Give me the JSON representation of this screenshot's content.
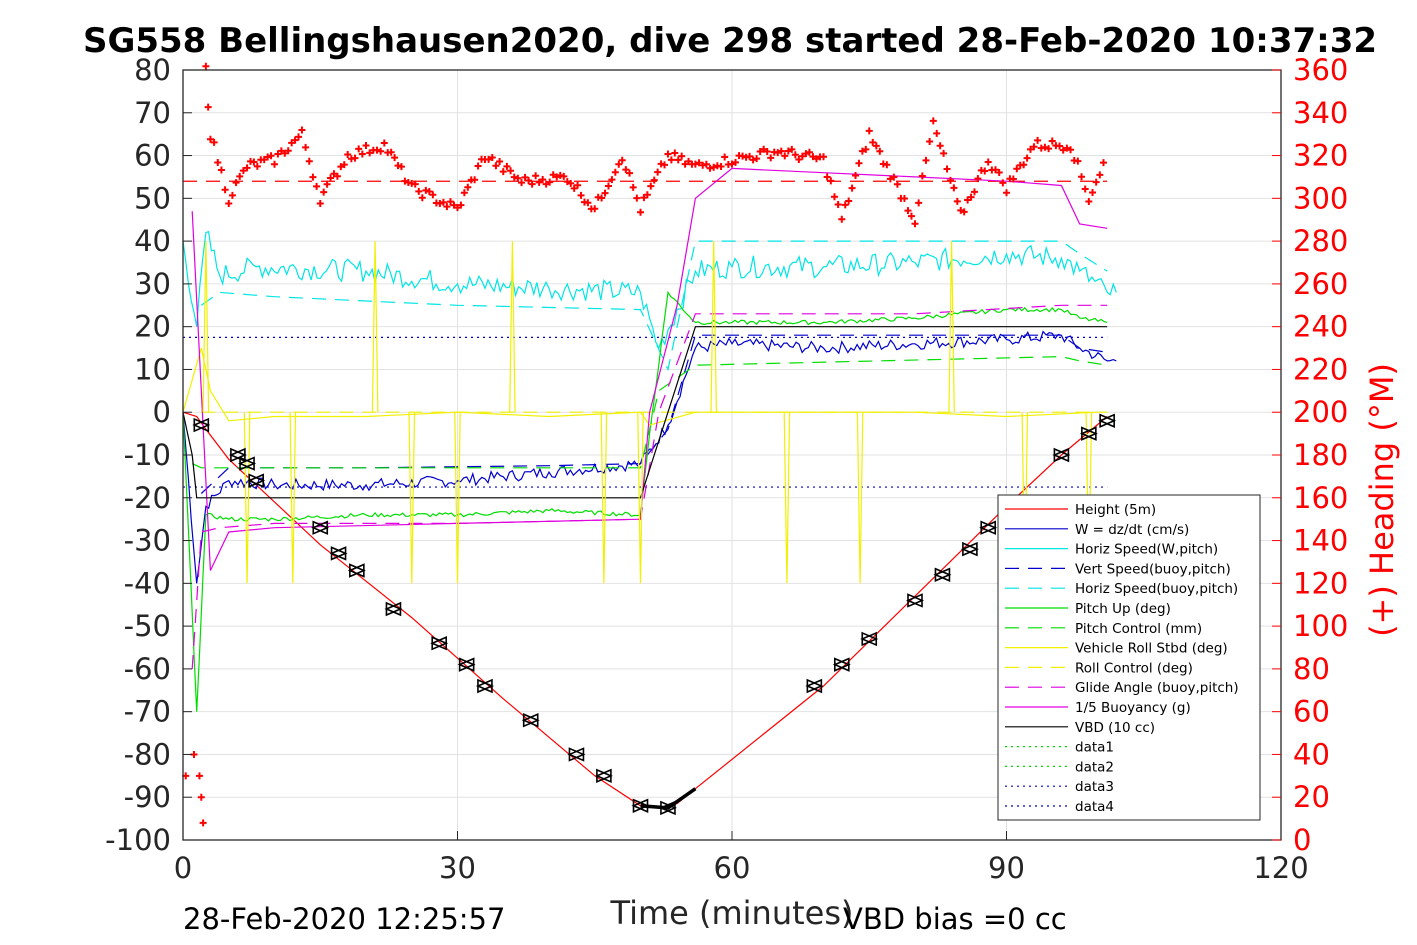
{
  "chart_data": {
    "type": "line",
    "title": "SG558 Bellingshausen2020, dive 298 started 28-Feb-2020 10:37:32",
    "xlabel": "Time (minutes)",
    "ylabel_right": "(+) Heading (°M)",
    "xlim": [
      0,
      120
    ],
    "ylim_left": [
      -100,
      80
    ],
    "ylim_right": [
      0,
      360
    ],
    "xticks": [
      "0",
      "30",
      "60",
      "90",
      "120"
    ],
    "yticks_left": [
      "80",
      "70",
      "60",
      "50",
      "40",
      "30",
      "20",
      "10",
      "0",
      "-10",
      "-20",
      "-30",
      "-40",
      "-50",
      "-60",
      "-70",
      "-80",
      "-90",
      "-100"
    ],
    "yticks_right": [
      "360",
      "340",
      "320",
      "300",
      "280",
      "260",
      "240",
      "220",
      "200",
      "180",
      "160",
      "140",
      "120",
      "100",
      "80",
      "60",
      "40",
      "20",
      "0"
    ],
    "grid": true,
    "legend_position": "lower-right",
    "footer_left": "28-Feb-2020 12:25:57",
    "footer_right": "VBD bias =0 cc",
    "colors": {
      "red": "#ff0000",
      "blue": "#0000cc",
      "cyan": "#00e5e5",
      "green": "#00dd00",
      "yellow": "#f0f000",
      "magenta": "#e000e0",
      "black": "#000000"
    },
    "series": [
      {
        "name": "Height (5m)",
        "color": "#ff0000",
        "dash": "solid",
        "x": [
          0,
          1.5,
          2.5,
          5,
          8,
          15,
          25,
          35,
          45,
          50,
          52,
          54,
          56,
          70,
          80,
          90,
          96,
          101
        ],
        "y": [
          0,
          -1,
          -4,
          -11,
          -17,
          -31,
          -48,
          -67,
          -85,
          -92,
          -92.5,
          -91.5,
          -88,
          -64,
          -43,
          -22,
          -10,
          -1
        ]
      },
      {
        "name": "W = dz/dt (cm/s)",
        "color": "#0000cc",
        "dash": "solid",
        "x": [
          0,
          1.5,
          2.5,
          5,
          10,
          20,
          30,
          40,
          50,
          53,
          56,
          60,
          70,
          80,
          90,
          96,
          98,
          101,
          102
        ],
        "y": [
          0,
          -40,
          -22,
          -16,
          -17,
          -17,
          -16,
          -14,
          -12,
          -3,
          15,
          16,
          15,
          16,
          17,
          18,
          15,
          12,
          12
        ]
      },
      {
        "name": "Horiz Speed(W,pitch)",
        "color": "#00e5e5",
        "dash": "solid",
        "x": [
          0,
          1.5,
          2.5,
          4,
          8,
          20,
          30,
          40,
          50,
          52,
          56,
          60,
          70,
          80,
          90,
          96,
          98,
          101,
          102
        ],
        "y": [
          40,
          20,
          42,
          32,
          34,
          33,
          30,
          29,
          28,
          15,
          33,
          34,
          34,
          35,
          37,
          36,
          33,
          28,
          28
        ]
      },
      {
        "name": "Vert Speed(buoy,pitch)",
        "color": "#0000cc",
        "dash": "long",
        "x": [
          2,
          5,
          20,
          40,
          50,
          53,
          56,
          80,
          96,
          98,
          101
        ],
        "y": [
          -19,
          -13,
          -13,
          -12.5,
          -12,
          -4,
          18,
          18,
          18,
          15,
          14
        ]
      },
      {
        "name": "Horiz Speed(buoy,pitch)",
        "color": "#00e5e5",
        "dash": "long",
        "x": [
          2,
          4,
          10,
          30,
          50,
          53,
          56,
          80,
          96,
          98,
          101
        ],
        "y": [
          25,
          28,
          27,
          25,
          24,
          10,
          40,
          40,
          40,
          37,
          33
        ]
      },
      {
        "name": "Pitch Up (deg)",
        "color": "#00dd00",
        "dash": "solid",
        "x": [
          0,
          1.5,
          2.5,
          5,
          10,
          20,
          30,
          40,
          50,
          51,
          53,
          56,
          60,
          70,
          80,
          90,
          96,
          98,
          101
        ],
        "y": [
          0,
          -70,
          -24,
          -25,
          -25,
          -24,
          -24,
          -23,
          -24,
          -5,
          28,
          21,
          21,
          21,
          22,
          24,
          24,
          22,
          21
        ]
      },
      {
        "name": "Pitch Control (mm)",
        "color": "#00dd00",
        "dash": "long",
        "x": [
          1,
          2,
          4,
          30,
          50,
          52,
          56,
          96,
          98,
          101
        ],
        "y": [
          -12,
          -13,
          -13,
          -13,
          -13,
          5,
          11,
          13,
          12,
          11
        ]
      },
      {
        "name": "Vehicle Roll Stbd (deg)",
        "color": "#f0f000",
        "dash": "solid",
        "x": [
          0,
          2,
          3,
          5,
          10,
          20,
          30,
          40,
          50,
          51,
          56,
          60,
          70,
          80,
          90,
          100,
          101
        ],
        "y": [
          0,
          15,
          5,
          -2,
          -1,
          -1,
          0,
          -1,
          0,
          -3,
          0,
          0,
          0,
          0,
          -1,
          0,
          0
        ]
      },
      {
        "name": "Roll Control (deg)",
        "color": "#f0f000",
        "dash": "long",
        "x": [
          2,
          10,
          30,
          50,
          60,
          80,
          100
        ],
        "y": [
          0,
          0,
          0,
          0,
          0,
          0,
          0
        ]
      },
      {
        "name": "Glide Angle (buoy,pitch)",
        "color": "#e000e0",
        "dash": "long",
        "x": [
          1,
          2,
          4,
          10,
          30,
          50,
          52,
          56,
          60,
          80,
          96,
          101
        ],
        "y": [
          -60,
          -28,
          -27,
          -26,
          -26,
          -25,
          0,
          23,
          23,
          23,
          25,
          25
        ]
      },
      {
        "name": "1/5 Buoyancy (g)",
        "color": "#e000e0",
        "dash": "solid",
        "x": [
          1,
          3,
          5,
          10,
          30,
          50,
          51,
          54,
          56,
          60,
          70,
          80,
          90,
          96,
          98,
          101
        ],
        "y": [
          47,
          -37,
          -28,
          -27,
          -26,
          -25,
          0,
          25,
          50,
          57,
          56,
          55,
          54,
          53,
          44,
          43
        ]
      },
      {
        "name": "VBD (10 cc)",
        "color": "#000000",
        "dash": "solid",
        "x": [
          0,
          1,
          1.5,
          50,
          56,
          101
        ],
        "y": [
          0,
          -10,
          -20,
          -20,
          20,
          20
        ]
      },
      {
        "name": "data1",
        "color": "#00dd00",
        "dash": "dotted",
        "x": [],
        "y": []
      },
      {
        "name": "data2",
        "color": "#00dd00",
        "dash": "dotted",
        "x": [],
        "y": []
      },
      {
        "name": "data3",
        "color": "#0000cc",
        "dash": "dotted",
        "x": [],
        "y": []
      },
      {
        "name": "data4",
        "color": "#0000cc",
        "dash": "dotted",
        "x": [],
        "y": []
      }
    ],
    "reference_lines": {
      "dotted_y": [
        17.5,
        -17.5
      ],
      "heading_target_deg": 308
    },
    "heading": {
      "x": [
        2.5,
        3,
        5,
        7,
        10,
        13,
        15,
        18,
        22,
        25,
        30,
        33,
        37,
        42,
        45,
        48,
        50,
        53,
        56,
        60,
        65,
        70,
        72,
        75,
        80,
        82,
        85,
        88,
        90,
        93,
        97,
        99,
        101
      ],
      "y": [
        360,
        330,
        300,
        315,
        318,
        330,
        300,
        320,
        325,
        305,
        295,
        320,
        308,
        310,
        295,
        320,
        295,
        320,
        315,
        318,
        322,
        318,
        290,
        330,
        290,
        335,
        292,
        318,
        305,
        325,
        325,
        300,
        320
      ]
    },
    "markers": {
      "x": [
        2,
        6,
        7,
        8,
        15,
        17,
        19,
        23,
        28,
        31,
        33,
        38,
        43,
        46,
        50,
        53,
        69,
        72,
        75,
        80,
        83,
        86,
        88,
        96,
        99,
        101
      ],
      "y": [
        -3,
        -10,
        -12,
        -16,
        -27,
        -33,
        -37,
        -46,
        -54,
        -59,
        -64,
        -72,
        -80,
        -85,
        -92,
        -92.5,
        -64,
        -59,
        -53,
        -44,
        -38,
        -32,
        -27,
        -10,
        -5,
        -2
      ]
    }
  }
}
